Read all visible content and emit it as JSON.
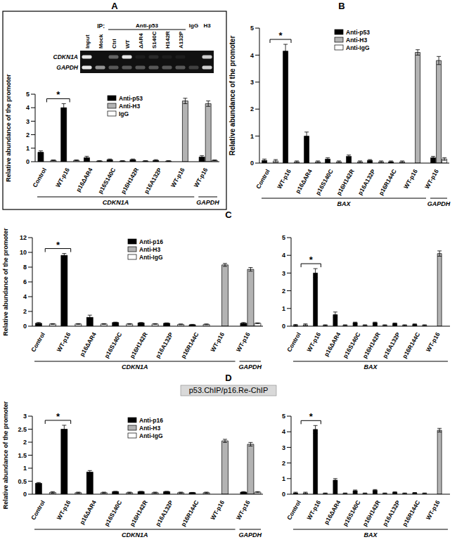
{
  "gel": {
    "ip_label": "IP:",
    "lanes": [
      {
        "label": "Input",
        "ip": null
      },
      {
        "label": "Mock",
        "ip": null
      },
      {
        "label": "Ctrl",
        "ip": "Anti-p53"
      },
      {
        "label": "WT",
        "ip": "Anti-p53"
      },
      {
        "label": "ΔAR4",
        "ip": "Anti-p53"
      },
      {
        "label": "S140C",
        "ip": "Anti-p53"
      },
      {
        "label": "H142R",
        "ip": "Anti-p53"
      },
      {
        "label": "A132P",
        "ip": "Anti-p53"
      },
      {
        "label": null,
        "ip": "IgG"
      },
      {
        "label": null,
        "ip": "H3"
      }
    ],
    "rows": [
      {
        "label": "CDKN1A",
        "bands": [
          0.9,
          0,
          0.35,
          0.9,
          0.05,
          0.1,
          0.05,
          0.05,
          0,
          0.8
        ]
      },
      {
        "label": "GAPDH",
        "bands": [
          0.9,
          0.55,
          0.3,
          0.3,
          0.3,
          0.3,
          0.3,
          0.3,
          0.2,
          0.8
        ]
      }
    ]
  },
  "chart_data": [
    {
      "panel": "A",
      "type": "bar",
      "y_label": "Relative abundance of the promoter",
      "categories": [
        "Control",
        "WT-p16",
        "p16ΔAR4",
        "p16S140C",
        "p16H142R",
        "p16A132P",
        "WT-p16",
        "WT-p16"
      ],
      "groups": [
        {
          "label": "CDKN1A",
          "categories": [
            "Control",
            "WT-p16",
            "p16ΔAR4",
            "p16S140C",
            "p16H142R",
            "p16A132P",
            "WT-p16"
          ]
        },
        {
          "label": "GAPDH",
          "categories": [
            "WT-p16"
          ]
        }
      ],
      "series": [
        {
          "name": "Anti-p53",
          "color": "#000000",
          "values": [
            0.7,
            4.0,
            0.3,
            0.15,
            0.15,
            0.1,
            null,
            0.35
          ],
          "errors": [
            0.1,
            0.3,
            0.1,
            0.05,
            0.05,
            0.05,
            null,
            0.1
          ]
        },
        {
          "name": "Anti-H3",
          "color": "#b3b3b3",
          "values": [
            null,
            null,
            null,
            null,
            null,
            null,
            4.5,
            4.3
          ],
          "errors": [
            null,
            null,
            null,
            null,
            null,
            null,
            0.2,
            0.2
          ]
        },
        {
          "name": "IgG",
          "color": "#ffffff",
          "values": [
            0.1,
            0.1,
            0.05,
            0.05,
            0.05,
            0.05,
            null,
            0.1
          ],
          "errors": [
            0.03,
            0.03,
            0.03,
            0.03,
            0.03,
            0.03,
            null,
            0.03
          ]
        }
      ],
      "ylim": [
        0,
        5
      ],
      "yticks": [
        0,
        1,
        2,
        3,
        4,
        5
      ],
      "legend": "top",
      "annotations": [
        {
          "text": "*",
          "from": "Control",
          "to": "WT-p16"
        }
      ]
    },
    {
      "panel": "B",
      "type": "bar",
      "y_label": "Relative abundance of the promoter",
      "categories": [
        "Control",
        "WT-p16",
        "p16ΔAR4",
        "p16S140C",
        "p16H142R",
        "p16A132P",
        "p16R144C",
        "WT-p16",
        "WT-p16"
      ],
      "groups": [
        {
          "label": "BAX",
          "categories": [
            "Control",
            "WT-p16",
            "p16ΔAR4",
            "p16S140C",
            "p16H142R",
            "p16A132P",
            "p16R144C",
            "WT-p16"
          ]
        },
        {
          "label": "GAPDH",
          "categories": [
            "WT-p16"
          ]
        }
      ],
      "series": [
        {
          "name": "Anti-p53",
          "color": "#000000",
          "values": [
            0.1,
            4.15,
            1.0,
            0.15,
            0.25,
            0.1,
            0.05,
            null,
            0.2
          ],
          "errors": [
            0.05,
            0.25,
            0.15,
            0.05,
            0.05,
            0.03,
            0.03,
            null,
            0.05
          ]
        },
        {
          "name": "Anti-H3",
          "color": "#b3b3b3",
          "values": [
            null,
            null,
            null,
            null,
            null,
            null,
            null,
            4.1,
            3.8
          ],
          "errors": [
            null,
            null,
            null,
            null,
            null,
            null,
            null,
            0.1,
            0.15
          ]
        },
        {
          "name": "Anti-IgG",
          "color": "#ffffff",
          "values": [
            0.08,
            0.05,
            0.05,
            0.05,
            0.05,
            0.05,
            0.05,
            null,
            0.15
          ],
          "errors": [
            0.05,
            0.03,
            0.03,
            0.03,
            0.03,
            0.03,
            0.03,
            null,
            0.05
          ]
        }
      ],
      "ylim": [
        0,
        5
      ],
      "yticks": [
        0,
        1,
        2,
        3,
        4,
        5
      ],
      "legend": "top",
      "annotations": [
        {
          "text": "*",
          "from": "Control",
          "to": "WT-p16"
        }
      ]
    },
    {
      "panel": "C",
      "type": "bar",
      "y_label": "Relative abundance of the promoter",
      "categories": [
        "Control",
        "WT-p16",
        "p16ΔAR4",
        "p16S140C",
        "p16H142R",
        "p16A132P",
        "p16R144C",
        "WT-p16",
        "WT-p16"
      ],
      "groups": [
        {
          "label": "CDKN1A",
          "categories": [
            "Control",
            "WT-p16",
            "p16ΔAR4",
            "p16S140C",
            "p16H142R",
            "p16A132P",
            "p16R144C",
            "WT-p16"
          ]
        },
        {
          "label": "GAPDH",
          "categories": [
            "WT-p16"
          ]
        }
      ],
      "series": [
        {
          "name": "Anti-p16",
          "color": "#000000",
          "values": [
            0.4,
            9.6,
            1.2,
            0.5,
            0.45,
            0.4,
            0.2,
            null,
            0.4
          ],
          "errors": [
            0.1,
            0.25,
            0.3,
            0.05,
            0.05,
            0.05,
            0.05,
            null,
            0.1
          ]
        },
        {
          "name": "Anti-H3",
          "color": "#b3b3b3",
          "values": [
            null,
            null,
            null,
            null,
            null,
            null,
            null,
            8.3,
            7.7
          ],
          "errors": [
            null,
            null,
            null,
            null,
            null,
            null,
            null,
            0.2,
            0.25
          ]
        },
        {
          "name": "Anti-IgG",
          "color": "#ffffff",
          "values": [
            0.3,
            0.3,
            0.3,
            0.3,
            0.3,
            0.25,
            0.25,
            null,
            0.4
          ],
          "errors": [
            0.05,
            0.05,
            0.05,
            0.05,
            0.05,
            0.05,
            0.05,
            null,
            0.05
          ]
        }
      ],
      "ylim": [
        0,
        12
      ],
      "yticks": [
        0,
        2,
        4,
        6,
        8,
        10,
        12
      ],
      "legend": "top",
      "annotations": [
        {
          "text": "*",
          "from": "Control",
          "to": "WT-p16"
        }
      ]
    },
    {
      "type": "bar",
      "categories": [
        "Control",
        "WT-p16",
        "p16ΔAR4",
        "p16S140C",
        "p16H142R",
        "p16A132P",
        "p16R144C",
        "WT-p16"
      ],
      "groups": [
        {
          "label": "BAX",
          "categories": [
            "Control",
            "WT-p16",
            "p16ΔAR4",
            "p16S140C",
            "p16H142R",
            "p16A132P",
            "p16R144C",
            "WT-p16"
          ]
        }
      ],
      "series": [
        {
          "color": "#000000",
          "values": [
            0.05,
            3.0,
            0.65,
            0.2,
            0.2,
            0.15,
            0.1,
            null
          ],
          "errors": [
            0.05,
            0.25,
            0.15,
            0.03,
            0.03,
            0.03,
            0.03,
            null
          ]
        },
        {
          "color": "#b3b3b3",
          "values": [
            null,
            null,
            null,
            null,
            null,
            null,
            null,
            4.1
          ],
          "errors": [
            null,
            null,
            null,
            null,
            null,
            null,
            null,
            0.15
          ]
        },
        {
          "color": "#ffffff",
          "values": [
            0.08,
            0.05,
            0.05,
            0.05,
            0.05,
            0.05,
            0.05,
            null
          ],
          "errors": [
            0.05,
            0.03,
            0.03,
            0.03,
            0.03,
            0.03,
            0.03,
            null
          ]
        }
      ],
      "ylim": [
        0,
        5
      ],
      "yticks": [
        0,
        1,
        2,
        3,
        4,
        5
      ],
      "annotations": [
        {
          "text": "*",
          "from": "Control",
          "to": "WT-p16"
        }
      ]
    },
    {
      "panel": "D",
      "title": "p53.ChIP/p16.Re-ChIP",
      "type": "bar",
      "y_label": "Relative abundance of the promoter",
      "categories": [
        "Control",
        "WT-p16",
        "p16ΔAR4",
        "p16S140C",
        "p16H142R",
        "p16A132P",
        "p16R144C",
        "WT-p16",
        "WT-p16"
      ],
      "groups": [
        {
          "label": "CDKN1A",
          "categories": [
            "Control",
            "WT-p16",
            "p16ΔAR4",
            "p16S140C",
            "p16H142R",
            "p16A132P",
            "p16R144C",
            "WT-p16"
          ]
        },
        {
          "label": "GAPDH",
          "categories": [
            "WT-p16"
          ]
        }
      ],
      "series": [
        {
          "name": "Anti-p16",
          "color": "#000000",
          "values": [
            0.42,
            2.5,
            0.85,
            0.1,
            0.1,
            0.1,
            0.06,
            null,
            0.08
          ],
          "errors": [
            0.03,
            0.15,
            0.06,
            0.01,
            0.01,
            0.01,
            0.01,
            null,
            0.02
          ]
        },
        {
          "name": "Anti-H3",
          "color": "#b3b3b3",
          "values": [
            null,
            null,
            null,
            null,
            null,
            null,
            null,
            2.05,
            1.92
          ],
          "errors": [
            null,
            null,
            null,
            null,
            null,
            null,
            null,
            0.06,
            0.07
          ]
        },
        {
          "name": "Anti-IgG",
          "color": "#ffffff",
          "values": [
            0.07,
            0.06,
            0.06,
            0.06,
            0.06,
            0.06,
            0.06,
            null,
            0.08
          ],
          "errors": [
            0.03,
            0.02,
            0.02,
            0.02,
            0.02,
            0.02,
            0.02,
            null,
            0.02
          ]
        }
      ],
      "ylim": [
        0,
        3
      ],
      "yticks": [
        0,
        0.5,
        1,
        1.5,
        2,
        2.5,
        3
      ],
      "legend": "top",
      "annotations": [
        {
          "text": "*",
          "from": "Control",
          "to": "WT-p16"
        }
      ]
    },
    {
      "type": "bar",
      "categories": [
        "Control",
        "WT-p16",
        "p16ΔAR4",
        "p16S140C",
        "p16H142R",
        "p16A132P",
        "p16R144C",
        "WT-p16"
      ],
      "groups": [
        {
          "label": "BAX",
          "categories": [
            "Control",
            "WT-p16",
            "p16ΔAR4",
            "p16S140C",
            "p16H142R",
            "p16A132P",
            "p16R144C",
            "WT-p16"
          ]
        }
      ],
      "series": [
        {
          "color": "#000000",
          "values": [
            0.08,
            4.15,
            0.9,
            0.22,
            0.25,
            0.12,
            0.08,
            null
          ],
          "errors": [
            0.05,
            0.25,
            0.1,
            0.05,
            0.05,
            0.03,
            0.03,
            null
          ]
        },
        {
          "color": "#b3b3b3",
          "values": [
            null,
            null,
            null,
            null,
            null,
            null,
            null,
            4.1
          ],
          "errors": [
            null,
            null,
            null,
            null,
            null,
            null,
            null,
            0.12
          ]
        },
        {
          "color": "#ffffff",
          "values": [
            0.08,
            0.05,
            0.05,
            0.05,
            0.05,
            0.05,
            0.05,
            null
          ],
          "errors": [
            0.05,
            0.03,
            0.03,
            0.03,
            0.03,
            0.03,
            0.03,
            null
          ]
        }
      ],
      "ylim": [
        0,
        5
      ],
      "yticks": [
        0,
        1,
        2,
        3,
        4,
        5
      ],
      "annotations": [
        {
          "text": "*",
          "from": "Control",
          "to": "WT-p16"
        }
      ]
    }
  ]
}
